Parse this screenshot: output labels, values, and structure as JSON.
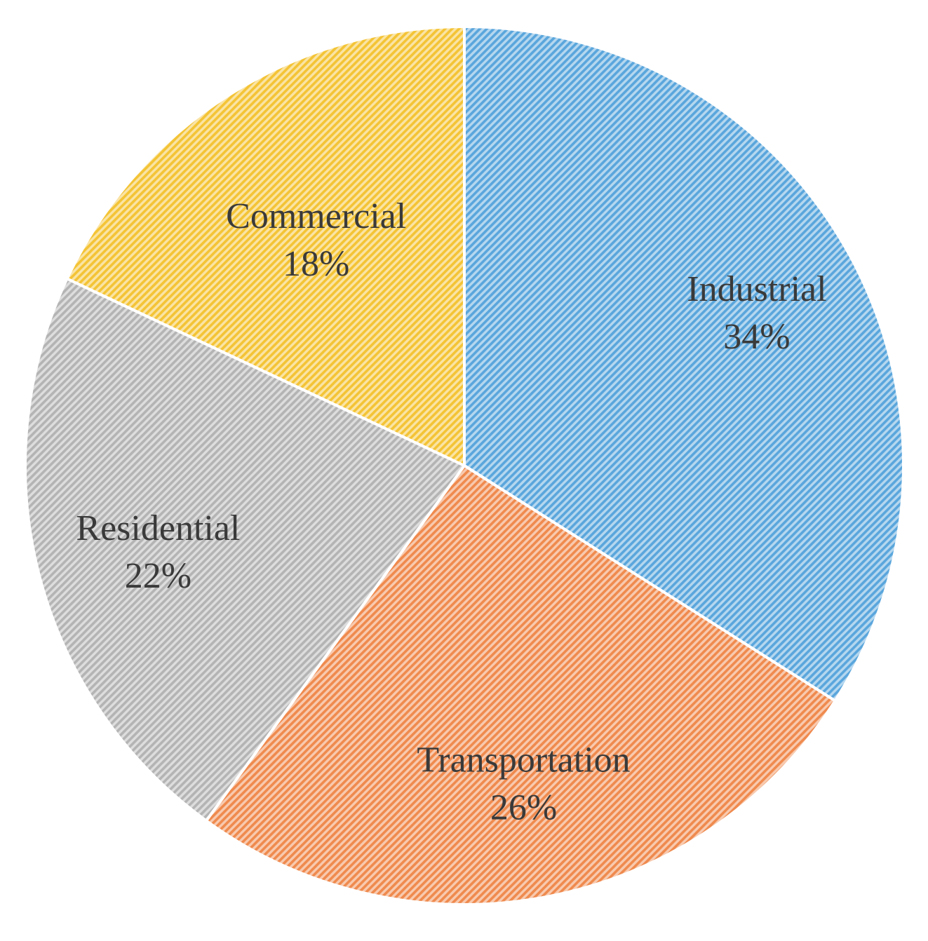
{
  "chart_data": {
    "type": "pie",
    "slices": [
      {
        "label": "Industrial",
        "value": 34,
        "value_label": "34%",
        "color": "#5aa6dc"
      },
      {
        "label": "Transportation",
        "value": 26,
        "value_label": "26%",
        "color": "#ef8a4e"
      },
      {
        "label": "Residential",
        "value": 22,
        "value_label": "22%",
        "color": "#b4b4b4"
      },
      {
        "label": "Commercial",
        "value": 18,
        "value_label": "18%",
        "color": "#f4c436"
      }
    ],
    "start_angle": "12 o'clock",
    "direction": "clockwise",
    "fill_style": "diagonal hatch",
    "legend": "none"
  }
}
